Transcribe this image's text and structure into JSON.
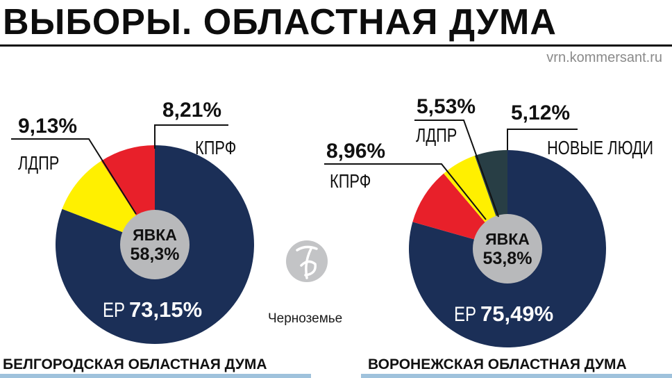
{
  "header": {
    "title": "ВЫБОРЫ. ОБЛАСТНАЯ ДУМА",
    "source": "vrn.kommersant.ru"
  },
  "logo": {
    "caption": "Черноземье",
    "icon": "kommersant-logo-icon"
  },
  "colors": {
    "ep": "#1b2f57",
    "kprf": "#e8202a",
    "ldpr": "#fff000",
    "new_people": "#283e45",
    "center": "#b8b9bb"
  },
  "chart_data": [
    {
      "type": "pie",
      "title": "БЕЛГОРОДСКАЯ ОБЛАСТНАЯ ДУМА",
      "center_label": "ЯВКА",
      "center_value": "58,3%",
      "slices": [
        {
          "name": "ЕР",
          "value": 73.15,
          "value_label": "73,15%",
          "color": "#1b2f57"
        },
        {
          "name": "ЛДПР",
          "value": 9.13,
          "value_label": "9,13%",
          "color": "#fff000"
        },
        {
          "name": "КПРФ",
          "value": 8.21,
          "value_label": "8,21%",
          "color": "#e8202a"
        }
      ]
    },
    {
      "type": "pie",
      "title": "ВОРОНЕЖСКАЯ ОБЛАСТНАЯ ДУМА",
      "center_label": "ЯВКА",
      "center_value": "53,8%",
      "slices": [
        {
          "name": "ЕР",
          "value": 75.49,
          "value_label": "75,49%",
          "color": "#1b2f57"
        },
        {
          "name": "КПРФ",
          "value": 8.96,
          "value_label": "8,96%",
          "color": "#e8202a"
        },
        {
          "name": "ЛДПР",
          "value": 5.53,
          "value_label": "5,53%",
          "color": "#fff000"
        },
        {
          "name": "НОВЫЕ ЛЮДИ",
          "value": 5.12,
          "value_label": "5,12%",
          "color": "#283e45"
        }
      ]
    }
  ]
}
